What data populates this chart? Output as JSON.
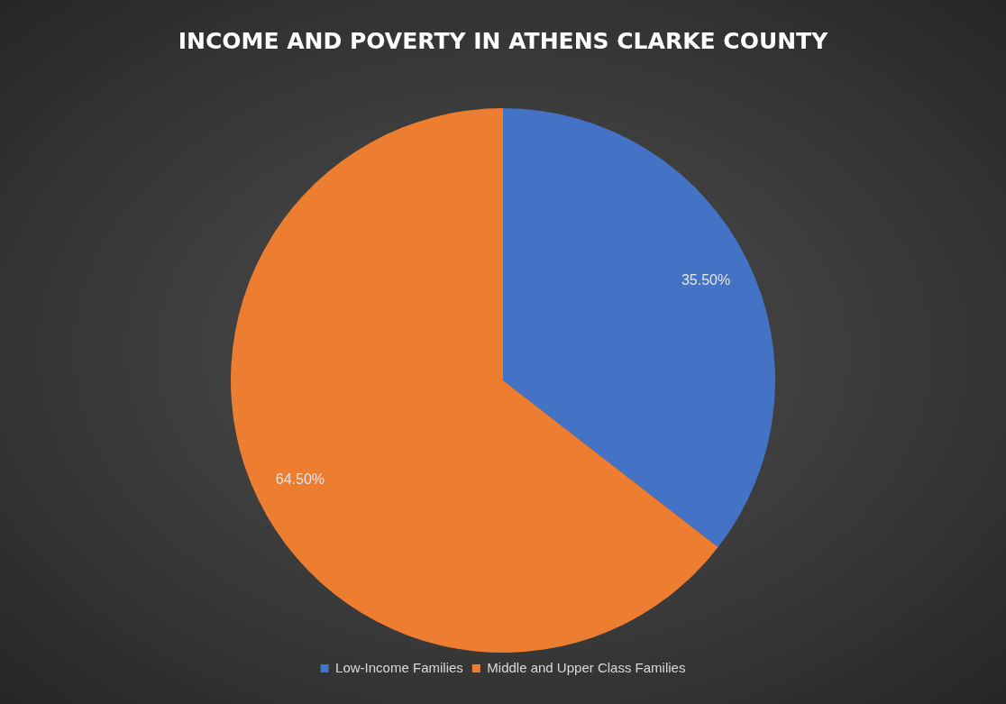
{
  "chart_data": {
    "type": "pie",
    "title": "INCOME AND POVERTY IN ATHENS CLARKE COUNTY",
    "categories": [
      "Low-Income Families",
      "Middle and Upper Class Families"
    ],
    "values": [
      35.5,
      64.5
    ],
    "colors": [
      "#4472c4",
      "#ed7d31"
    ],
    "value_labels": [
      "35.50%",
      "64.50%"
    ],
    "legend": "bottom"
  }
}
